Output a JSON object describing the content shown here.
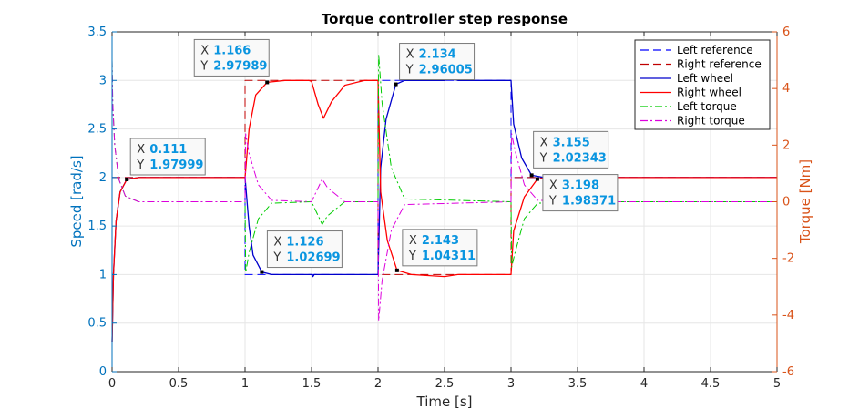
{
  "chart_data": {
    "type": "line",
    "title": "Torque controller step response",
    "xlabel": "Time [s]",
    "ylabel_left": "Speed [rad/s]",
    "ylabel_right": "Torque [Nm]",
    "xlim": [
      0,
      5
    ],
    "ylim_left": [
      0,
      3.5
    ],
    "ylim_right": [
      -6,
      6
    ],
    "xticks": [
      "0",
      "0.5",
      "1",
      "1.5",
      "2",
      "2.5",
      "3",
      "3.5",
      "4",
      "4.5",
      "5"
    ],
    "yticks_left": [
      "0",
      "0.5",
      "1",
      "1.5",
      "2",
      "2.5",
      "3",
      "3.5"
    ],
    "yticks_right": [
      "-6",
      "-4",
      "-2",
      "0",
      "2",
      "4",
      "6"
    ],
    "grid": true,
    "legend_position": "top-right",
    "colors": {
      "left_axis": "#0072bd",
      "right_axis": "#d95319",
      "tooltip_value": "#0a95e0"
    },
    "series": [
      {
        "name": "Left reference",
        "axis": "left",
        "color": "#0000ff",
        "style": "dashed",
        "x": [
          0,
          1,
          1,
          2,
          2,
          3,
          3,
          5
        ],
        "y": [
          2,
          2,
          1,
          1,
          3,
          3,
          2,
          2
        ]
      },
      {
        "name": "Right reference",
        "axis": "left",
        "color": "#c00000",
        "style": "dashed",
        "x": [
          0,
          1,
          1,
          2,
          2,
          3,
          3,
          5
        ],
        "y": [
          2,
          2,
          3,
          3,
          1,
          1,
          2,
          2
        ]
      },
      {
        "name": "Left wheel",
        "axis": "left",
        "color": "#0000cc",
        "style": "solid",
        "x": [
          0,
          0.01,
          0.03,
          0.06,
          0.111,
          0.2,
          0.5,
          1.0,
          1.03,
          1.06,
          1.126,
          1.2,
          1.5,
          1.51,
          1.52,
          1.6,
          1.7,
          2.0,
          2.02,
          2.06,
          2.134,
          2.2,
          2.5,
          2.55,
          2.6,
          3.0,
          3.02,
          3.08,
          3.155,
          3.25,
          3.4,
          3.5,
          3.8,
          4.0,
          5.0
        ],
        "y": [
          0.3,
          1.0,
          1.55,
          1.85,
          1.98,
          2.0,
          2.0,
          2.0,
          1.5,
          1.2,
          1.027,
          1.0,
          1.0,
          0.98,
          1.0,
          1.0,
          1.0,
          1.0,
          2.1,
          2.6,
          2.96,
          3.0,
          3.0,
          3.02,
          3.0,
          3.0,
          2.55,
          2.2,
          2.023,
          2.0,
          2.0,
          2.0,
          2.0,
          2.0,
          2.0
        ]
      },
      {
        "name": "Right wheel",
        "axis": "left",
        "color": "#ff0000",
        "style": "solid",
        "x": [
          0,
          0.01,
          0.03,
          0.06,
          0.111,
          0.2,
          0.5,
          1.0,
          1.03,
          1.08,
          1.166,
          1.3,
          1.48,
          1.5,
          1.55,
          1.59,
          1.65,
          1.75,
          1.9,
          2.0,
          2.02,
          2.07,
          2.143,
          2.25,
          2.5,
          2.6,
          3.0,
          3.02,
          3.1,
          3.198,
          3.3,
          3.5,
          5.0
        ],
        "y": [
          0.3,
          1.0,
          1.55,
          1.85,
          1.98,
          2.0,
          2.0,
          2.0,
          2.5,
          2.85,
          2.98,
          3.0,
          3.0,
          2.99,
          2.75,
          2.61,
          2.78,
          2.95,
          3.0,
          3.0,
          1.85,
          1.35,
          1.043,
          1.0,
          0.98,
          1.0,
          1.0,
          1.45,
          1.8,
          1.984,
          2.0,
          2.0,
          2.0
        ]
      },
      {
        "name": "Left torque",
        "axis": "right",
        "color": "#00cc00",
        "style": "dashdot",
        "x": [
          0,
          0.005,
          0.02,
          0.05,
          0.1,
          0.2,
          0.5,
          1.0,
          1.005,
          1.03,
          1.1,
          1.2,
          1.5,
          1.55,
          1.58,
          1.62,
          1.75,
          2.0,
          2.005,
          2.03,
          2.1,
          2.2,
          3.0,
          3.005,
          3.03,
          3.1,
          3.2,
          3.5,
          5.0
        ],
        "y": [
          5.0,
          3.5,
          2.0,
          0.8,
          0.2,
          0.0,
          0.0,
          0.0,
          -2.5,
          -1.8,
          -0.6,
          -0.05,
          0.0,
          -0.5,
          -0.8,
          -0.5,
          0.0,
          0.0,
          5.2,
          3.5,
          1.2,
          0.1,
          0.0,
          -2.3,
          -1.8,
          -0.6,
          -0.05,
          0.0,
          0.0
        ]
      },
      {
        "name": "Right torque",
        "axis": "right",
        "color": "#dd00dd",
        "style": "dashdot",
        "x": [
          0,
          0.005,
          0.02,
          0.05,
          0.1,
          0.2,
          0.5,
          1.0,
          1.005,
          1.03,
          1.1,
          1.2,
          1.5,
          1.55,
          1.58,
          1.62,
          1.75,
          2.0,
          2.005,
          2.03,
          2.1,
          2.2,
          3.0,
          3.005,
          3.03,
          3.1,
          3.2,
          3.5,
          5.0
        ],
        "y": [
          5.0,
          3.5,
          2.0,
          0.8,
          0.2,
          0.0,
          0.0,
          0.0,
          2.4,
          1.7,
          0.6,
          0.05,
          0.0,
          0.5,
          0.8,
          0.5,
          0.0,
          0.0,
          -4.2,
          -2.8,
          -1.0,
          -0.1,
          0.0,
          2.4,
          1.8,
          0.6,
          0.05,
          0.0,
          0.0
        ]
      }
    ],
    "datatips": [
      {
        "x": 0.111,
        "y": 1.97999,
        "x_label": "0.111",
        "y_label": "1.97999",
        "placement": "right"
      },
      {
        "x": 1.166,
        "y": 2.97989,
        "x_label": "1.166",
        "y_label": "2.97989",
        "placement": "above-left"
      },
      {
        "x": 1.126,
        "y": 1.02699,
        "x_label": "1.126",
        "y_label": "1.02699",
        "placement": "right"
      },
      {
        "x": 2.134,
        "y": 2.96005,
        "x_label": "2.134",
        "y_label": "2.96005",
        "placement": "right"
      },
      {
        "x": 2.143,
        "y": 1.04311,
        "x_label": "2.143",
        "y_label": "1.04311",
        "placement": "right"
      },
      {
        "x": 3.155,
        "y": 2.02343,
        "x_label": "3.155",
        "y_label": "2.02343",
        "placement": "above-right"
      },
      {
        "x": 3.198,
        "y": 1.98371,
        "x_label": "3.198",
        "y_label": "1.98371",
        "placement": "right"
      }
    ]
  }
}
